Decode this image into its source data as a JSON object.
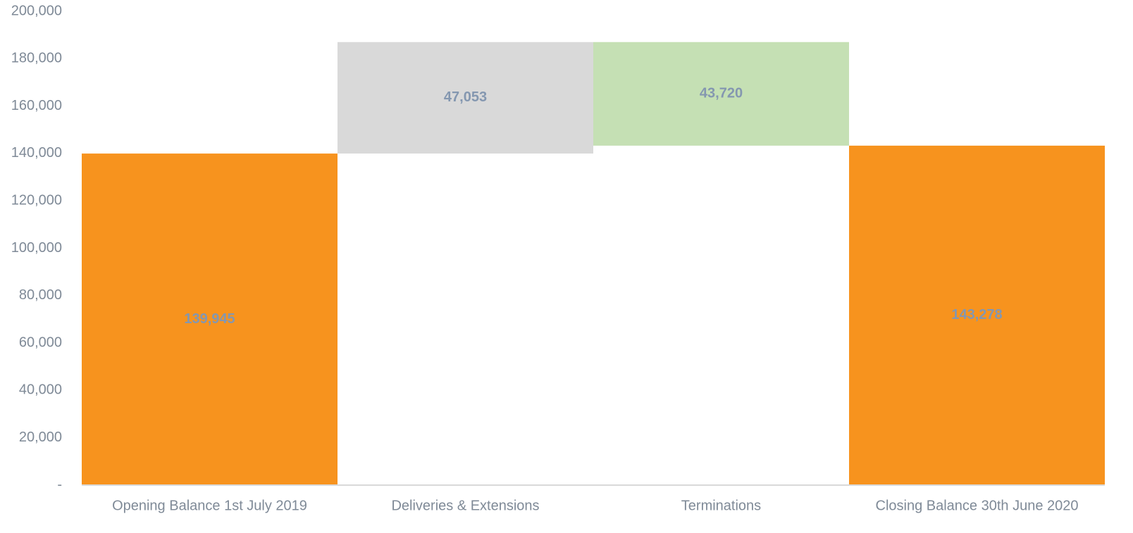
{
  "chart_data": {
    "type": "waterfall",
    "categories": [
      "Opening Balance 1st July 2019",
      "Deliveries & Extensions",
      "Terminations",
      "Closing  Balance 30th June 2020"
    ],
    "values": [
      139945,
      47053,
      -43720,
      143278
    ],
    "value_labels": [
      "139,945",
      "47,053",
      "43,720",
      "143,278"
    ],
    "measures": [
      "total",
      "relative",
      "relative",
      "total"
    ],
    "colors": [
      "#f7931e",
      "#d9d9d9",
      "#c5e0b4",
      "#f7931e"
    ],
    "ylim": [
      0,
      200000
    ],
    "yticks": [
      {
        "value": 0,
        "label": "-"
      },
      {
        "value": 20000,
        "label": "20,000"
      },
      {
        "value": 40000,
        "label": "40,000"
      },
      {
        "value": 60000,
        "label": "60,000"
      },
      {
        "value": 80000,
        "label": "80,000"
      },
      {
        "value": 100000,
        "label": "100,000"
      },
      {
        "value": 120000,
        "label": "120,000"
      },
      {
        "value": 140000,
        "label": "140,000"
      },
      {
        "value": 160000,
        "label": "160,000"
      },
      {
        "value": 180000,
        "label": "180,000"
      },
      {
        "value": 200000,
        "label": "200,000"
      }
    ],
    "grid": false
  }
}
